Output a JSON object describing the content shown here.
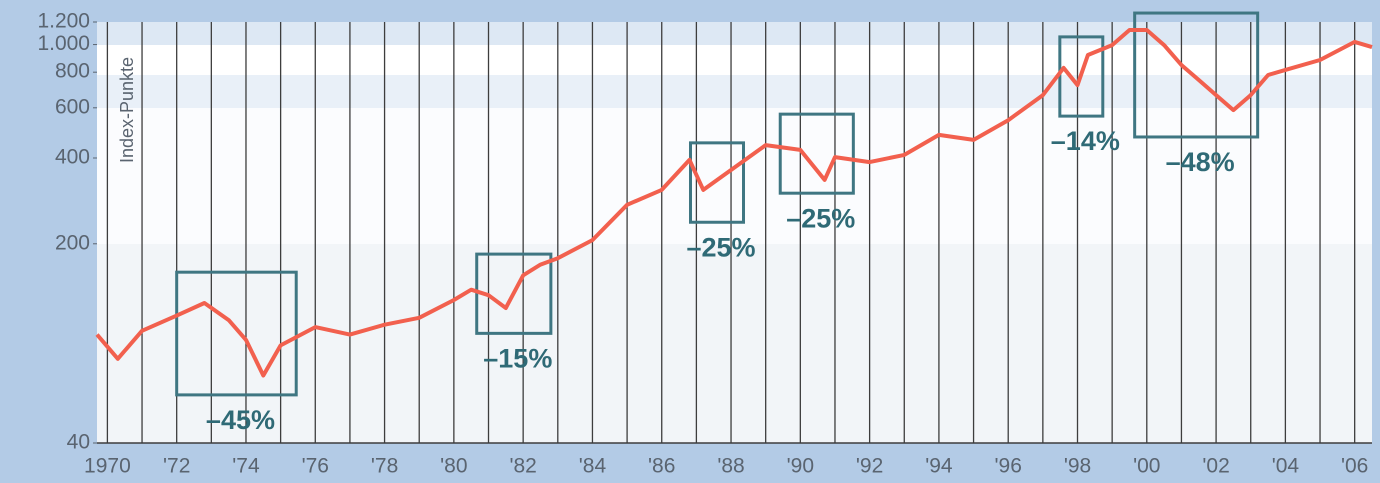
{
  "chart_data": {
    "type": "line",
    "y_label": "Index-Punkte",
    "log_scale": true,
    "xlim": [
      1969.7,
      2006.5
    ],
    "ylim": [
      40,
      1200
    ],
    "yticks": [
      40,
      200,
      400,
      600,
      800,
      {
        "value": 1000,
        "label": "1.000"
      },
      {
        "value": 1200,
        "label": "1.200"
      }
    ],
    "xticks": [
      1970,
      {
        "value": 1972,
        "label": "'72"
      },
      {
        "value": 1974,
        "label": "'74"
      },
      {
        "value": 1976,
        "label": "'76"
      },
      {
        "value": 1978,
        "label": "'78"
      },
      {
        "value": 1980,
        "label": "'80"
      },
      {
        "value": 1982,
        "label": "'82"
      },
      {
        "value": 1984,
        "label": "'84"
      },
      {
        "value": 1986,
        "label": "'86"
      },
      {
        "value": 1988,
        "label": "'88"
      },
      {
        "value": 1990,
        "label": "'90"
      },
      {
        "value": 1992,
        "label": "'92"
      },
      {
        "value": 1994,
        "label": "'94"
      },
      {
        "value": 1996,
        "label": "'96"
      },
      {
        "value": 1998,
        "label": "'98"
      },
      {
        "value": 2000,
        "label": "'00"
      },
      {
        "value": 2002,
        "label": "'02"
      },
      {
        "value": 2004,
        "label": "'04"
      },
      {
        "value": 2006,
        "label": "'06"
      }
    ],
    "x": [
      1969.7,
      1970.3,
      1971,
      1972,
      1972.8,
      1973.5,
      1974,
      1974.5,
      1975,
      1976,
      1977,
      1978,
      1979,
      1980,
      1980.5,
      1981,
      1981.5,
      1982,
      1982.5,
      1983,
      1984,
      1985,
      1986,
      1986.8,
      1987.2,
      1988,
      1989,
      1990,
      1990.7,
      1991,
      1992,
      1993,
      1994,
      1995,
      1996,
      1997,
      1997.6,
      1998,
      1998.3,
      1999,
      1999.5,
      2000,
      2000.5,
      2001,
      2001.5,
      2002,
      2002.5,
      2003,
      2003.5,
      2004,
      2005,
      2006,
      2006.5
    ],
    "series": [
      {
        "color": "#f2604e",
        "values": [
          96,
          79,
          99,
          112,
          124,
          108,
          92,
          69,
          88,
          102,
          96,
          104,
          110,
          127,
          138,
          132,
          119,
          155,
          169,
          178,
          206,
          274,
          309,
          394,
          309,
          363,
          444,
          427,
          335,
          403,
          387,
          410,
          482,
          463,
          543,
          665,
          828,
          721,
          919,
          996,
          1125,
          1125,
          996,
          848,
          751,
          665,
          589,
          665,
          782,
          815,
          883,
          1022,
          980
        ]
      }
    ],
    "annotations": [
      {
        "text": "–45%",
        "x": [
          1972,
          1975.45
        ],
        "y": [
          59,
          159
        ]
      },
      {
        "text": "–15%",
        "x": [
          1980.66,
          1982.8
        ],
        "y": [
          97,
          184
        ]
      },
      {
        "text": "–25%",
        "x": [
          1986.83,
          1988.36
        ],
        "y": [
          238,
          452
        ]
      },
      {
        "text": "–25%",
        "x": [
          1989.42,
          1991.53
        ],
        "y": [
          301,
          570
        ]
      },
      {
        "text": "–14%",
        "x": [
          1997.49,
          1998.73
        ],
        "y": [
          561,
          1064
        ]
      },
      {
        "text": "–48%",
        "x": [
          1999.65,
          2003.2
        ],
        "y": [
          474,
          1290
        ]
      }
    ]
  }
}
